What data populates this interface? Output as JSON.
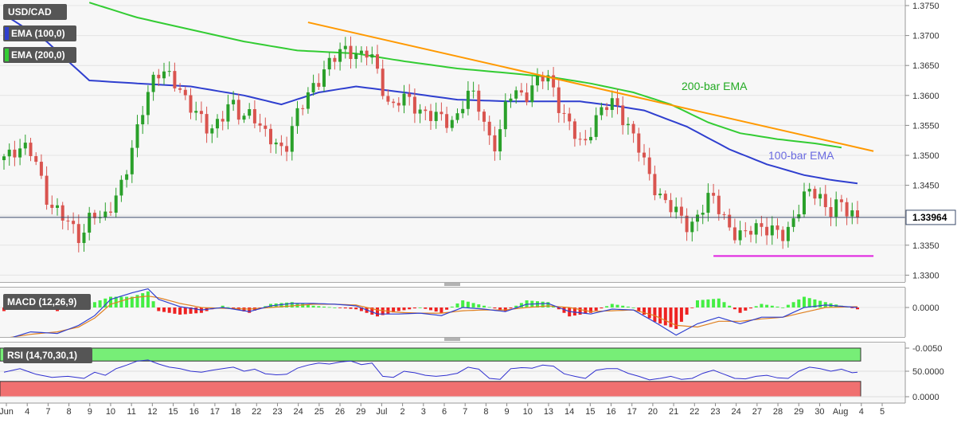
{
  "symbol": "USD/CAD",
  "indicators": {
    "ema100": "EMA (100,0)",
    "ema200": "EMA (200,0)",
    "macd": "MACD (12,26,9)",
    "rsi": "RSI (14,70,30,1)"
  },
  "colors": {
    "bullish": "#2aa02a",
    "bearish": "#d9544f",
    "ema100": "#2f3fcf",
    "ema200": "#33cc33",
    "trend_resistance": "#ff9900",
    "support": "#e020e0",
    "macd_line": "#3040d0",
    "signal_line": "#e08020",
    "hist_pos": "#44ee44",
    "hist_neg": "#ee2222",
    "rsi_line": "#3030d0",
    "rsi_over": "#77ee77",
    "rsi_under": "#f07070",
    "label_bg": "#555555"
  },
  "chart_data": [
    {
      "type": "candlestick",
      "title": "USD/CAD",
      "current_price": "1.33964",
      "ylim": [
        1.329,
        1.3755
      ],
      "y_ticks": [
        "1.3750",
        "1.3700",
        "1.3650",
        "1.3600",
        "1.3550",
        "1.3500",
        "1.3450",
        "1.3400",
        "1.3350",
        "1.3300"
      ],
      "x_ticks": [
        "Jun",
        "4",
        "7",
        "8",
        "9",
        "10",
        "11",
        "12",
        "15",
        "16",
        "17",
        "18",
        "22",
        "23",
        "24",
        "25",
        "26",
        "29",
        "Jul",
        "2",
        "3",
        "6",
        "7",
        "8",
        "9",
        "10",
        "13",
        "14",
        "15",
        "16",
        "17",
        "20",
        "21",
        "22",
        "23",
        "24",
        "27",
        "28",
        "29",
        "30",
        "Aug",
        "4",
        "5"
      ],
      "annotations": [
        "200-bar EMA",
        "100-bar EMA"
      ],
      "waypoints": [
        [
          0,
          1.3495
        ],
        [
          3,
          1.3515
        ],
        [
          6,
          1.35
        ],
        [
          9,
          1.342
        ],
        [
          12,
          1.339
        ],
        [
          15,
          1.3365
        ],
        [
          17,
          1.3405
        ],
        [
          19,
          1.3385
        ],
        [
          21,
          1.343
        ],
        [
          23,
          1.346
        ],
        [
          25,
          1.352
        ],
        [
          27,
          1.36
        ],
        [
          29,
          1.364
        ],
        [
          31,
          1.363
        ],
        [
          33,
          1.362
        ],
        [
          35,
          1.359
        ],
        [
          37,
          1.356
        ],
        [
          39,
          1.354
        ],
        [
          41,
          1.3565
        ],
        [
          43,
          1.3585
        ],
        [
          45,
          1.356
        ],
        [
          47,
          1.358
        ],
        [
          49,
          1.3535
        ],
        [
          51,
          1.352
        ],
        [
          53,
          1.351
        ],
        [
          55,
          1.356
        ],
        [
          57,
          1.359
        ],
        [
          59,
          1.3625
        ],
        [
          61,
          1.365
        ],
        [
          63,
          1.3665
        ],
        [
          65,
          1.368
        ],
        [
          67,
          1.3668
        ],
        [
          69,
          1.367
        ],
        [
          71,
          1.3625
        ],
        [
          73,
          1.358
        ],
        [
          75,
          1.3595
        ],
        [
          77,
          1.3585
        ],
        [
          79,
          1.3575
        ],
        [
          81,
          1.3565
        ],
        [
          83,
          1.3555
        ],
        [
          85,
          1.356
        ],
        [
          87,
          1.36
        ],
        [
          89,
          1.3595
        ],
        [
          91,
          1.354
        ],
        [
          93,
          1.3515
        ],
        [
          95,
          1.36
        ],
        [
          97,
          1.3605
        ],
        [
          99,
          1.3605
        ],
        [
          101,
          1.363
        ],
        [
          103,
          1.3625
        ],
        [
          105,
          1.3575
        ],
        [
          107,
          1.354
        ],
        [
          109,
          1.351
        ],
        [
          111,
          1.356
        ],
        [
          113,
          1.358
        ],
        [
          115,
          1.3585
        ],
        [
          117,
          1.356
        ],
        [
          119,
          1.3525
        ],
        [
          121,
          1.347
        ],
        [
          123,
          1.344
        ],
        [
          125,
          1.342
        ],
        [
          127,
          1.3395
        ],
        [
          129,
          1.338
        ],
        [
          131,
          1.341
        ],
        [
          133,
          1.343
        ],
        [
          135,
          1.3405
        ],
        [
          137,
          1.3375
        ],
        [
          139,
          1.336
        ],
        [
          141,
          1.338
        ],
        [
          143,
          1.3385
        ],
        [
          145,
          1.337
        ],
        [
          147,
          1.336
        ],
        [
          149,
          1.341
        ],
        [
          151,
          1.344
        ],
        [
          153,
          1.343
        ],
        [
          155,
          1.341
        ],
        [
          157,
          1.3425
        ],
        [
          159,
          1.3395
        ],
        [
          160,
          1.3396
        ]
      ],
      "ema100": [
        [
          0,
          1.3735
        ],
        [
          8,
          1.369
        ],
        [
          16,
          1.3625
        ],
        [
          25,
          1.362
        ],
        [
          35,
          1.3615
        ],
        [
          45,
          1.36
        ],
        [
          52,
          1.3585
        ],
        [
          59,
          1.3605
        ],
        [
          66,
          1.3615
        ],
        [
          75,
          1.3605
        ],
        [
          85,
          1.3593
        ],
        [
          95,
          1.359
        ],
        [
          100,
          1.359
        ],
        [
          108,
          1.359
        ],
        [
          115,
          1.3582
        ],
        [
          120,
          1.3575
        ],
        [
          128,
          1.3548
        ],
        [
          136,
          1.351
        ],
        [
          143,
          1.3485
        ],
        [
          150,
          1.3467
        ],
        [
          155,
          1.3459
        ],
        [
          160,
          1.3453
        ]
      ],
      "ema200": [
        [
          16,
          1.3755
        ],
        [
          25,
          1.373
        ],
        [
          35,
          1.371
        ],
        [
          45,
          1.369
        ],
        [
          55,
          1.3675
        ],
        [
          66,
          1.367
        ],
        [
          75,
          1.3657
        ],
        [
          85,
          1.3645
        ],
        [
          95,
          1.3637
        ],
        [
          103,
          1.363
        ],
        [
          110,
          1.362
        ],
        [
          118,
          1.3605
        ],
        [
          125,
          1.3585
        ],
        [
          132,
          1.3555
        ],
        [
          138,
          1.3537
        ],
        [
          145,
          1.3527
        ],
        [
          152,
          1.352
        ],
        [
          157,
          1.3513
        ]
      ],
      "trendlines": [
        {
          "points": [
            [
              57,
              1.3722
            ],
            [
              163,
              1.3507
            ]
          ]
        },
        {
          "points": [
            [
              133,
              1.3332
            ],
            [
              163,
              1.3332
            ]
          ]
        }
      ]
    },
    {
      "type": "macd",
      "title": "MACD (12,26,9)",
      "ylim": [
        -0.0078,
        0.0036
      ],
      "y_ticks": [
        "0.0000",
        "-0.0050"
      ],
      "macd": [
        [
          0,
          -0.004
        ],
        [
          5,
          -0.003
        ],
        [
          10,
          -0.0032
        ],
        [
          14,
          -0.0022
        ],
        [
          17,
          -0.001
        ],
        [
          20,
          0.001
        ],
        [
          24,
          0.0018
        ],
        [
          27,
          0.0023
        ],
        [
          29,
          0.001
        ],
        [
          33,
          0.0001
        ],
        [
          37,
          -0.0003
        ],
        [
          41,
          0.0
        ],
        [
          46,
          -0.0005
        ],
        [
          50,
          0.0002
        ],
        [
          54,
          0.0005
        ],
        [
          58,
          0.0005
        ],
        [
          62,
          0.0004
        ],
        [
          66,
          0.0002
        ],
        [
          70,
          -0.0008
        ],
        [
          74,
          -0.0008
        ],
        [
          78,
          -0.0007
        ],
        [
          82,
          -0.001
        ],
        [
          86,
          0.0
        ],
        [
          90,
          -0.0002
        ],
        [
          94,
          -0.0005
        ],
        [
          98,
          0.0004
        ],
        [
          102,
          0.0005
        ],
        [
          106,
          -0.0005
        ],
        [
          110,
          -0.0008
        ],
        [
          114,
          -0.0002
        ],
        [
          118,
          -0.0003
        ],
        [
          122,
          -0.0018
        ],
        [
          126,
          -0.0034
        ],
        [
          130,
          -0.002
        ],
        [
          134,
          -0.0012
        ],
        [
          138,
          -0.002
        ],
        [
          142,
          -0.0012
        ],
        [
          146,
          -0.0012
        ],
        [
          150,
          0.0
        ],
        [
          154,
          0.0003
        ],
        [
          160,
          0.0
        ]
      ],
      "signal": [
        [
          0,
          -0.0038
        ],
        [
          5,
          -0.0033
        ],
        [
          10,
          -0.003
        ],
        [
          14,
          -0.0024
        ],
        [
          17,
          -0.0013
        ],
        [
          20,
          0.0004
        ],
        [
          24,
          0.0012
        ],
        [
          27,
          0.0014
        ],
        [
          29,
          0.0012
        ],
        [
          33,
          0.0005
        ],
        [
          37,
          0.0
        ],
        [
          41,
          -0.0001
        ],
        [
          46,
          -0.0002
        ],
        [
          50,
          0.0
        ],
        [
          54,
          0.0002
        ],
        [
          58,
          0.0004
        ],
        [
          62,
          0.0004
        ],
        [
          66,
          0.0003
        ],
        [
          70,
          -0.0003
        ],
        [
          74,
          -0.0006
        ],
        [
          78,
          -0.0007
        ],
        [
          82,
          -0.0007
        ],
        [
          86,
          -0.0004
        ],
        [
          90,
          -0.0003
        ],
        [
          94,
          -0.0003
        ],
        [
          98,
          0.0
        ],
        [
          102,
          0.0002
        ],
        [
          106,
          0.0
        ],
        [
          110,
          -0.0005
        ],
        [
          114,
          -0.0004
        ],
        [
          118,
          -0.0003
        ],
        [
          122,
          -0.001
        ],
        [
          126,
          -0.0022
        ],
        [
          130,
          -0.0024
        ],
        [
          134,
          -0.0017
        ],
        [
          138,
          -0.0017
        ],
        [
          142,
          -0.0014
        ],
        [
          146,
          -0.0012
        ],
        [
          150,
          -0.0006
        ],
        [
          154,
          0.0
        ],
        [
          160,
          0.0001
        ]
      ]
    },
    {
      "type": "line",
      "title": "RSI (14,70,30,1)",
      "ylim": [
        0,
        100
      ],
      "y_ticks": [
        "50.0000",
        "0.0000"
      ],
      "overbought": 70,
      "oversold": 30,
      "rsi": [
        [
          0,
          48
        ],
        [
          3,
          55
        ],
        [
          6,
          44
        ],
        [
          9,
          38
        ],
        [
          12,
          40
        ],
        [
          15,
          36
        ],
        [
          17,
          48
        ],
        [
          19,
          42
        ],
        [
          21,
          55
        ],
        [
          23,
          62
        ],
        [
          25,
          70
        ],
        [
          27,
          72
        ],
        [
          29,
          64
        ],
        [
          31,
          58
        ],
        [
          33,
          55
        ],
        [
          35,
          50
        ],
        [
          37,
          48
        ],
        [
          39,
          52
        ],
        [
          41,
          55
        ],
        [
          43,
          58
        ],
        [
          45,
          50
        ],
        [
          47,
          54
        ],
        [
          49,
          45
        ],
        [
          51,
          43
        ],
        [
          53,
          44
        ],
        [
          55,
          56
        ],
        [
          57,
          62
        ],
        [
          59,
          66
        ],
        [
          61,
          64
        ],
        [
          63,
          68
        ],
        [
          65,
          70
        ],
        [
          67,
          63
        ],
        [
          69,
          66
        ],
        [
          71,
          40
        ],
        [
          73,
          38
        ],
        [
          75,
          50
        ],
        [
          77,
          47
        ],
        [
          79,
          42
        ],
        [
          81,
          40
        ],
        [
          83,
          42
        ],
        [
          85,
          46
        ],
        [
          87,
          58
        ],
        [
          89,
          54
        ],
        [
          91,
          36
        ],
        [
          93,
          34
        ],
        [
          95,
          55
        ],
        [
          97,
          57
        ],
        [
          99,
          56
        ],
        [
          101,
          62
        ],
        [
          103,
          60
        ],
        [
          105,
          45
        ],
        [
          107,
          40
        ],
        [
          109,
          36
        ],
        [
          111,
          52
        ],
        [
          113,
          55
        ],
        [
          115,
          55
        ],
        [
          117,
          46
        ],
        [
          119,
          40
        ],
        [
          121,
          33
        ],
        [
          123,
          36
        ],
        [
          125,
          40
        ],
        [
          127,
          34
        ],
        [
          129,
          36
        ],
        [
          131,
          46
        ],
        [
          133,
          52
        ],
        [
          135,
          44
        ],
        [
          137,
          36
        ],
        [
          139,
          35
        ],
        [
          141,
          40
        ],
        [
          143,
          42
        ],
        [
          145,
          37
        ],
        [
          147,
          36
        ],
        [
          149,
          50
        ],
        [
          151,
          58
        ],
        [
          153,
          55
        ],
        [
          155,
          50
        ],
        [
          157,
          54
        ],
        [
          159,
          47
        ],
        [
          160,
          48
        ]
      ]
    }
  ]
}
